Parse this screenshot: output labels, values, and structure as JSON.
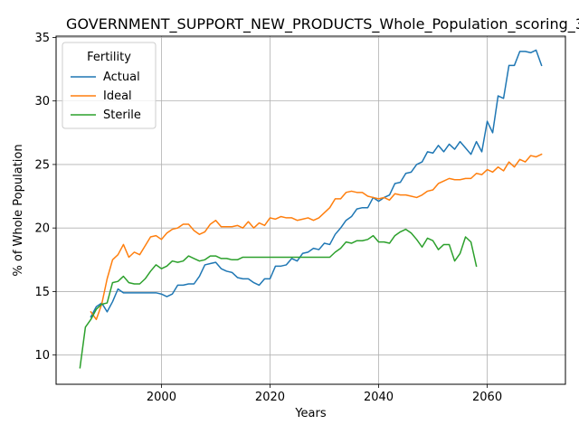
{
  "chart_data": {
    "type": "line",
    "title": "GOVERNMENT_SUPPORT_NEW_PRODUCTS_Whole_Population_scoring_3",
    "xlabel": "Years",
    "ylabel": "% of Whole Population",
    "xlim": [
      1980.6,
      2074.4
    ],
    "ylim": [
      7.7,
      35.1
    ],
    "xticks": [
      2000,
      2020,
      2040,
      2060
    ],
    "yticks": [
      10,
      15,
      20,
      25,
      30,
      35
    ],
    "grid": true,
    "legend": {
      "title": "Fertility",
      "placement": "top-left"
    },
    "series": [
      {
        "name": "Actual",
        "color": "#1f77b4",
        "x": [
          1987,
          1988,
          1989,
          1990,
          1991,
          1992,
          1993,
          1994,
          1995,
          1996,
          1997,
          1998,
          1999,
          2000,
          2001,
          2002,
          2003,
          2004,
          2005,
          2006,
          2007,
          2008,
          2009,
          2010,
          2011,
          2012,
          2013,
          2014,
          2015,
          2016,
          2017,
          2018,
          2019,
          2020,
          2021,
          2022,
          2023,
          2024,
          2025,
          2026,
          2027,
          2028,
          2029,
          2030,
          2031,
          2032,
          2033,
          2034,
          2035,
          2036,
          2037,
          2038,
          2039,
          2040,
          2041,
          2042,
          2043,
          2044,
          2045,
          2046,
          2047,
          2048,
          2049,
          2050,
          2051,
          2052,
          2053,
          2054,
          2055,
          2056,
          2057,
          2058,
          2059,
          2060,
          2061,
          2062,
          2063,
          2064,
          2065,
          2066,
          2067,
          2068,
          2069,
          2070
        ],
        "y": [
          13.0,
          13.8,
          14.1,
          13.4,
          14.2,
          15.2,
          14.9,
          14.9,
          14.9,
          14.9,
          14.9,
          14.9,
          14.9,
          14.8,
          14.6,
          14.8,
          15.5,
          15.5,
          15.6,
          15.6,
          16.2,
          17.1,
          17.2,
          17.3,
          16.8,
          16.6,
          16.5,
          16.1,
          16.0,
          16.0,
          15.7,
          15.5,
          16.0,
          16.0,
          17.0,
          17.0,
          17.1,
          17.6,
          17.4,
          18.0,
          18.1,
          18.4,
          18.3,
          18.8,
          18.7,
          19.5,
          20.0,
          20.6,
          20.9,
          21.5,
          21.6,
          21.6,
          22.4,
          22.1,
          22.4,
          22.6,
          23.5,
          23.6,
          24.3,
          24.4,
          25.0,
          25.2,
          26.0,
          25.9,
          26.5,
          26.0,
          26.6,
          26.2,
          26.8,
          26.3,
          25.8,
          26.8,
          26.0,
          28.4,
          27.5,
          30.4,
          30.2,
          32.8,
          32.8,
          33.9,
          33.9,
          33.8,
          34.0,
          32.8
        ]
      },
      {
        "name": "Ideal",
        "color": "#ff7f0e",
        "x": [
          1987,
          1988,
          1989,
          1990,
          1991,
          1992,
          1993,
          1994,
          1995,
          1996,
          1997,
          1998,
          1999,
          2000,
          2001,
          2002,
          2003,
          2004,
          2005,
          2006,
          2007,
          2008,
          2009,
          2010,
          2011,
          2012,
          2013,
          2014,
          2015,
          2016,
          2017,
          2018,
          2019,
          2020,
          2021,
          2022,
          2023,
          2024,
          2025,
          2026,
          2027,
          2028,
          2029,
          2030,
          2031,
          2032,
          2033,
          2034,
          2035,
          2036,
          2037,
          2038,
          2039,
          2040,
          2041,
          2042,
          2043,
          2044,
          2045,
          2046,
          2047,
          2048,
          2049,
          2050,
          2051,
          2052,
          2053,
          2054,
          2055,
          2056,
          2057,
          2058,
          2059,
          2060,
          2061,
          2062,
          2063,
          2064,
          2065,
          2066,
          2067,
          2068,
          2069,
          2070
        ],
        "y": [
          13.4,
          12.8,
          14.0,
          16.0,
          17.5,
          17.9,
          18.7,
          17.7,
          18.1,
          17.9,
          18.6,
          19.3,
          19.4,
          19.1,
          19.6,
          19.9,
          20.0,
          20.3,
          20.3,
          19.8,
          19.5,
          19.7,
          20.3,
          20.6,
          20.1,
          20.1,
          20.1,
          20.2,
          20.0,
          20.5,
          20.0,
          20.4,
          20.2,
          20.8,
          20.7,
          20.9,
          20.8,
          20.8,
          20.6,
          20.7,
          20.8,
          20.6,
          20.8,
          21.2,
          21.6,
          22.3,
          22.3,
          22.8,
          22.9,
          22.8,
          22.8,
          22.5,
          22.4,
          22.3,
          22.4,
          22.2,
          22.7,
          22.6,
          22.6,
          22.5,
          22.4,
          22.6,
          22.9,
          23.0,
          23.5,
          23.7,
          23.9,
          23.8,
          23.8,
          23.9,
          23.9,
          24.3,
          24.2,
          24.6,
          24.4,
          24.8,
          24.5,
          25.2,
          24.8,
          25.4,
          25.2,
          25.7,
          25.6,
          25.8
        ]
      },
      {
        "name": "Sterile",
        "color": "#2ca02c",
        "x": [
          1985,
          1986,
          1987,
          1988,
          1989,
          1990,
          1991,
          1992,
          1993,
          1994,
          1995,
          1996,
          1997,
          1998,
          1999,
          2000,
          2001,
          2002,
          2003,
          2004,
          2005,
          2006,
          2007,
          2008,
          2009,
          2010,
          2011,
          2012,
          2013,
          2014,
          2015,
          2016,
          2017,
          2018,
          2019,
          2020,
          2021,
          2022,
          2023,
          2024,
          2025,
          2026,
          2027,
          2028,
          2029,
          2030,
          2031,
          2032,
          2033,
          2034,
          2035,
          2036,
          2037,
          2038,
          2039,
          2040,
          2041,
          2042,
          2043,
          2044,
          2045,
          2046,
          2047,
          2048,
          2049,
          2050,
          2051,
          2052,
          2053,
          2054,
          2055,
          2056,
          2057,
          2058
        ],
        "y": [
          9.0,
          12.2,
          12.8,
          13.6,
          14.0,
          14.1,
          15.7,
          15.8,
          16.2,
          15.7,
          15.6,
          15.6,
          16.0,
          16.6,
          17.1,
          16.8,
          17.0,
          17.4,
          17.3,
          17.4,
          17.8,
          17.6,
          17.4,
          17.5,
          17.8,
          17.8,
          17.6,
          17.6,
          17.5,
          17.5,
          17.7,
          17.7,
          17.7,
          17.7,
          17.7,
          17.7,
          17.7,
          17.7,
          17.7,
          17.7,
          17.7,
          17.7,
          17.7,
          17.7,
          17.7,
          17.7,
          17.7,
          18.1,
          18.4,
          18.9,
          18.8,
          19.0,
          19.0,
          19.1,
          19.4,
          18.9,
          18.9,
          18.8,
          19.4,
          19.7,
          19.9,
          19.6,
          19.1,
          18.5,
          19.2,
          19.0,
          18.3,
          18.7,
          18.7,
          17.4,
          18.0,
          19.3,
          18.9,
          17.0
        ]
      }
    ]
  }
}
